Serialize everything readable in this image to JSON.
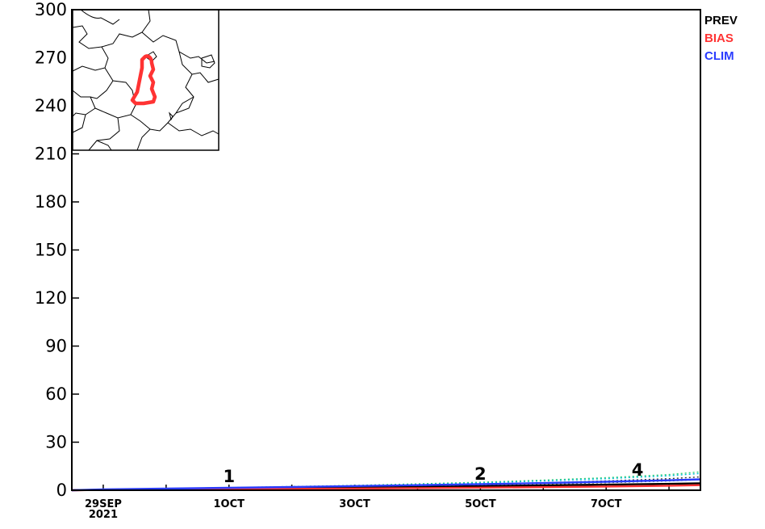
{
  "chart_data": {
    "type": "line",
    "title": "",
    "xlabel": "",
    "ylabel": "",
    "ylim": [
      0,
      300
    ],
    "yticks": [
      "0",
      "30",
      "60",
      "90",
      "120",
      "150",
      "180",
      "210",
      "240",
      "270",
      "300"
    ],
    "xlim": [
      -0.5,
      9.5
    ],
    "xticks": [
      {
        "x": 0,
        "label": "29SEP",
        "sub": "2021"
      },
      {
        "x": 2,
        "label": "1OCT",
        "sub": ""
      },
      {
        "x": 4,
        "label": "3OCT",
        "sub": ""
      },
      {
        "x": 6,
        "label": "5OCT",
        "sub": ""
      },
      {
        "x": 8,
        "label": "7OCT",
        "sub": ""
      }
    ],
    "week_markers": [
      {
        "x": 2,
        "y": 2,
        "label": "1"
      },
      {
        "x": 6,
        "y": 3.5,
        "label": "2"
      },
      {
        "x": 8.5,
        "y": 6,
        "label": "4"
      }
    ],
    "x": [
      -0.5,
      0,
      1,
      2,
      3,
      4,
      5,
      6,
      7,
      8,
      9,
      9.5
    ],
    "series": [
      {
        "name": "PREV",
        "color": "#000000",
        "values": [
          0,
          0.3,
          0.6,
          0.9,
          1.2,
          1.6,
          2.0,
          2.5,
          3.0,
          3.5,
          4.0,
          4.3
        ]
      },
      {
        "name": "BIAS",
        "color": "#ff3333",
        "values": [
          0,
          0.2,
          0.4,
          0.6,
          0.8,
          1.0,
          1.3,
          1.6,
          1.9,
          2.3,
          2.8,
          3.2
        ]
      },
      {
        "name": "CLIM",
        "color": "#2a3cff",
        "values": [
          0,
          0.5,
          1.0,
          1.5,
          2.0,
          2.6,
          3.2,
          3.8,
          4.5,
          5.3,
          6.2,
          6.8
        ]
      }
    ],
    "members": [
      {
        "color": "#2ecc71",
        "values": [
          0,
          0.5,
          1.0,
          1.6,
          2.3,
          3.0,
          4.0,
          5.0,
          6.3,
          7.8,
          9.8,
          11.5
        ]
      },
      {
        "color": "#00bcd4",
        "values": [
          0,
          0.4,
          0.9,
          1.4,
          2.0,
          2.8,
          3.6,
          4.6,
          5.8,
          7.2,
          9.0,
          10.5
        ]
      },
      {
        "color": "#333333",
        "values": [
          0,
          0.3,
          0.7,
          1.1,
          1.6,
          2.2,
          2.9,
          3.7,
          4.7,
          5.8,
          7.2,
          8.3
        ]
      },
      {
        "color": "#666666",
        "values": [
          0,
          0.2,
          0.5,
          0.8,
          1.2,
          1.7,
          2.3,
          3.0,
          3.8,
          4.7,
          5.8,
          6.6
        ]
      }
    ],
    "grid": false,
    "legend_position": "right",
    "inset_map": {
      "description_free": true
    }
  }
}
